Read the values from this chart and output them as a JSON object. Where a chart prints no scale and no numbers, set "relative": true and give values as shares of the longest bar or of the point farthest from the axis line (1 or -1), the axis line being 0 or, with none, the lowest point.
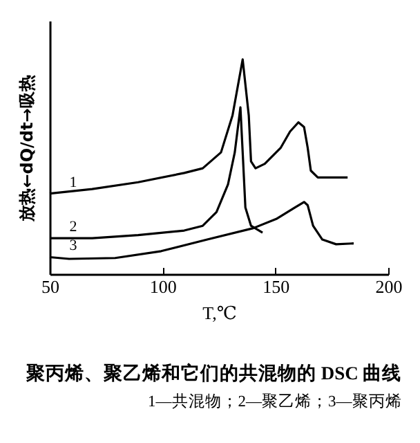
{
  "chart_data": {
    "type": "line",
    "relative": true,
    "title": "聚丙烯、聚乙烯和它们的共混物的 DSC 曲线",
    "subtitle": "1—共混物；2—聚乙烯；3—聚丙烯",
    "xlabel": "T,℃",
    "ylabel": "放热←dQ/dt→吸热",
    "xlim": [
      50,
      200
    ],
    "xticks": [
      50,
      100,
      150,
      200
    ],
    "grid": false,
    "marker": "none",
    "line_style": "solid",
    "series": [
      {
        "name": "1",
        "color": "#000000",
        "x": [
          50,
          68.8,
          89.2,
          109.6,
          117.8,
          125.9,
          131,
          135.5,
          138.2,
          139.2,
          141.2,
          145.3,
          152.4,
          156.5,
          160.2,
          162.7,
          164.3,
          165.7,
          168.8,
          182
        ],
        "values": [
          0.375,
          0.396,
          0.428,
          0.471,
          0.493,
          0.567,
          0.739,
          1,
          0.739,
          0.525,
          0.493,
          0.514,
          0.589,
          0.664,
          0.707,
          0.685,
          0.589,
          0.482,
          0.45,
          0.45
        ]
      },
      {
        "name": "2",
        "color": "#000000",
        "x": [
          50,
          68.8,
          89.2,
          109.6,
          117.8,
          123.9,
          129,
          132,
          134.5,
          135.7,
          136.7,
          139.2,
          144.3
        ],
        "values": [
          0.167,
          0.167,
          0.182,
          0.203,
          0.225,
          0.289,
          0.418,
          0.567,
          0.777,
          0.525,
          0.31,
          0.225,
          0.193
        ]
      },
      {
        "name": "3",
        "color": "#000000",
        "x": [
          50,
          58.6,
          79,
          99.4,
          119.8,
          140.2,
          150.4,
          158.6,
          162.7,
          164.3,
          166.7,
          170.8,
          176.9,
          184.7
        ],
        "values": [
          0.079,
          0.071,
          0.075,
          0.107,
          0.161,
          0.214,
          0.257,
          0.31,
          0.336,
          0.321,
          0.225,
          0.161,
          0.139,
          0.143
        ]
      }
    ]
  }
}
